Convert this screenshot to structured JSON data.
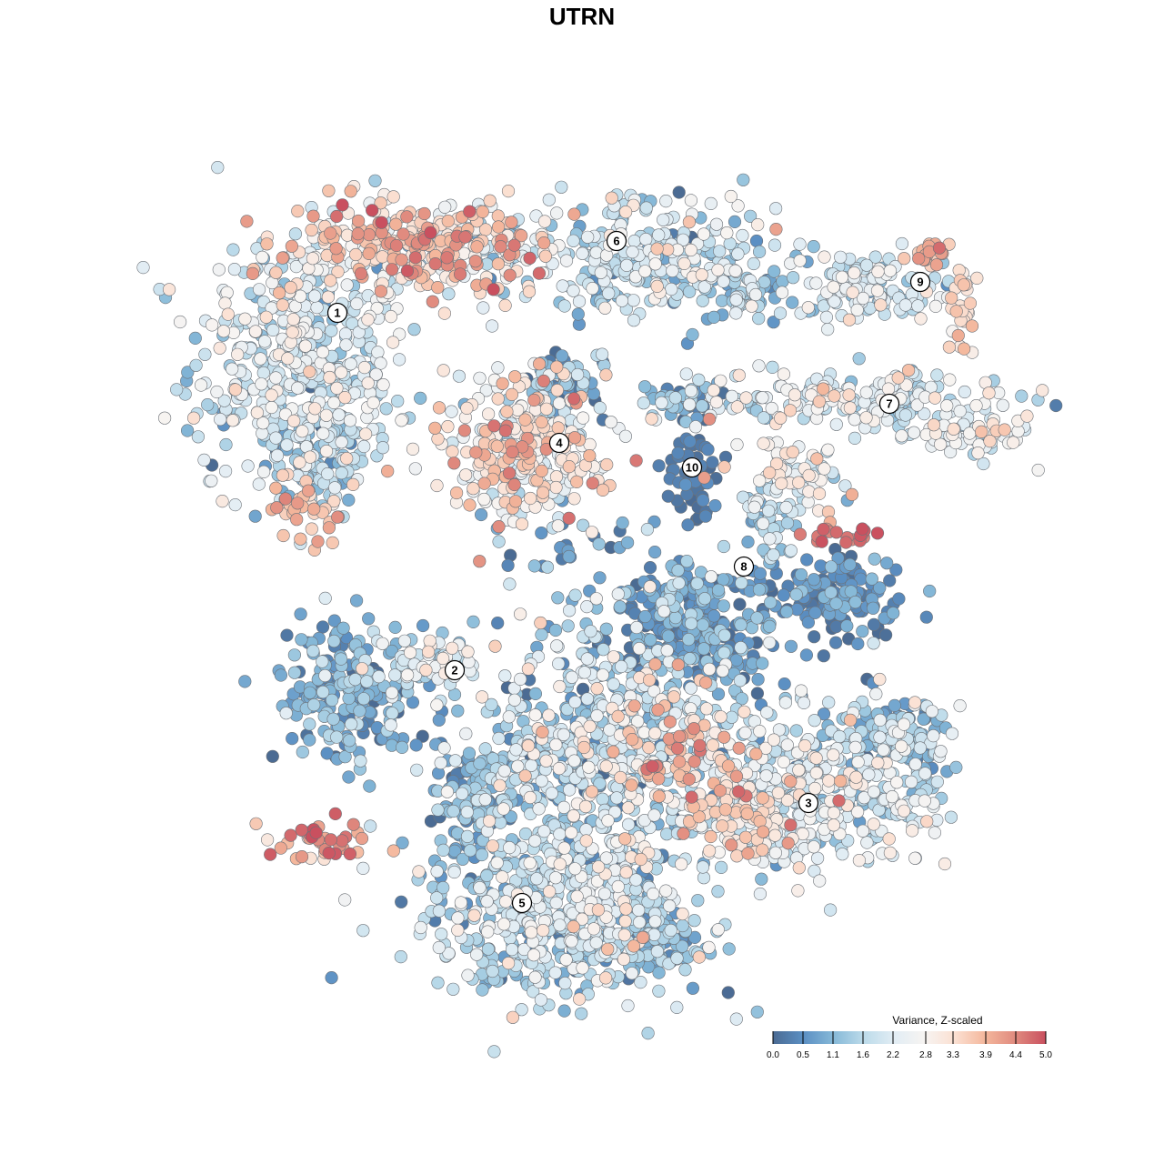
{
  "chart_data": {
    "type": "scatter",
    "title": "UTRN",
    "xlabel": "",
    "ylabel": "",
    "grid": false,
    "xlim": [
      -45,
      50
    ],
    "ylim": [
      -46,
      46
    ],
    "legend": {
      "title": "Variance, Z-scaled",
      "placement": "bottom-right",
      "ticks": [
        "0.0",
        "0.5",
        "1.1",
        "1.6",
        "2.2",
        "2.8",
        "3.3",
        "3.9",
        "4.4",
        "5.0"
      ],
      "tick_values": [
        0.0,
        0.55,
        1.1,
        1.65,
        2.2,
        2.8,
        3.3,
        3.9,
        4.45,
        5.0
      ],
      "range": [
        0,
        5
      ],
      "colors": [
        "#4b6b93",
        "#5b8fc3",
        "#86b9d8",
        "#bcdbea",
        "#e2edf4",
        "#f7f4f2",
        "#fbe0d2",
        "#f4b79c",
        "#e08a7e",
        "#c9505f"
      ]
    },
    "cluster_labels": [
      {
        "label": "1",
        "x": -26.9,
        "y": 29.6
      },
      {
        "label": "2",
        "x": -14.0,
        "y": -9.7
      },
      {
        "label": "3",
        "x": 24.9,
        "y": -24.3
      },
      {
        "label": "4",
        "x": -2.5,
        "y": 15.3
      },
      {
        "label": "5",
        "x": -6.6,
        "y": -35.3
      },
      {
        "label": "6",
        "x": 3.8,
        "y": 37.5
      },
      {
        "label": "7",
        "x": 33.8,
        "y": 19.6
      },
      {
        "label": "8",
        "x": 17.8,
        "y": 1.7
      },
      {
        "label": "9",
        "x": 37.2,
        "y": 33.0
      },
      {
        "label": "10",
        "x": 12.1,
        "y": 12.6
      }
    ],
    "point_groups": [
      {
        "x": -31,
        "y": 24,
        "sx": 10,
        "sy": 12,
        "n": 480,
        "mean": 2.1,
        "sd": 0.6
      },
      {
        "x": -17,
        "y": 37,
        "sx": 13,
        "sy": 4.5,
        "n": 300,
        "mean": 3.5,
        "sd": 0.7
      },
      {
        "x": 6,
        "y": 36,
        "sx": 13,
        "sy": 5.5,
        "n": 300,
        "mean": 1.9,
        "sd": 0.7
      },
      {
        "x": 18,
        "y": 32,
        "sx": 4,
        "sy": 3,
        "n": 60,
        "mean": 1.5,
        "sd": 0.6
      },
      {
        "x": -30.5,
        "y": 8,
        "sx": 3.5,
        "sy": 2.5,
        "n": 40,
        "mean": 3.8,
        "sd": 0.4
      },
      {
        "x": -29,
        "y": 14,
        "sx": 5,
        "sy": 4,
        "n": 80,
        "mean": 1.3,
        "sd": 0.5
      },
      {
        "x": 32,
        "y": 32.5,
        "sx": 7,
        "sy": 3,
        "n": 120,
        "mean": 2.0,
        "sd": 0.5
      },
      {
        "x": 38,
        "y": 36,
        "sx": 2.5,
        "sy": 1.5,
        "n": 25,
        "mean": 3.9,
        "sd": 0.3
      },
      {
        "x": 42,
        "y": 30,
        "sx": 1,
        "sy": 4,
        "n": 25,
        "mean": 3.4,
        "sd": 0.4
      },
      {
        "x": 31,
        "y": 20,
        "sx": 15,
        "sy": 3,
        "n": 200,
        "mean": 2.2,
        "sd": 0.6
      },
      {
        "x": 43,
        "y": 16,
        "sx": 5,
        "sy": 2,
        "n": 60,
        "mean": 2.6,
        "sd": 0.5
      },
      {
        "x": -6,
        "y": 14,
        "sx": 7.5,
        "sy": 6.5,
        "n": 300,
        "mean": 3.0,
        "sd": 0.8
      },
      {
        "x": -2,
        "y": 22,
        "sx": 4,
        "sy": 3,
        "n": 60,
        "mean": 0.8,
        "sd": 0.6
      },
      {
        "x": 12.2,
        "y": 12.5,
        "sx": 2.5,
        "sy": 3.5,
        "n": 60,
        "mean": 0.2,
        "sd": 0.2
      },
      {
        "x": 10,
        "y": 20,
        "sx": 4,
        "sy": 1.5,
        "n": 50,
        "mean": 1.2,
        "sd": 0.6
      },
      {
        "x": 24,
        "y": 12,
        "sx": 5,
        "sy": 3,
        "n": 60,
        "mean": 2.6,
        "sd": 0.6
      },
      {
        "x": 29,
        "y": 5,
        "sx": 4,
        "sy": 1,
        "n": 20,
        "mean": 4.6,
        "sd": 0.3
      },
      {
        "x": 28,
        "y": -1.5,
        "sx": 6.5,
        "sy": 3.5,
        "n": 150,
        "mean": 0.5,
        "sd": 0.4
      },
      {
        "x": 21,
        "y": 7,
        "sx": 2.5,
        "sy": 3.5,
        "n": 50,
        "mean": 1.4,
        "sd": 0.6
      },
      {
        "x": 12,
        "y": -2,
        "sx": 7,
        "sy": 3.5,
        "n": 120,
        "mean": 0.7,
        "sd": 0.5
      },
      {
        "x": -26,
        "y": -12,
        "sx": 6,
        "sy": 7,
        "n": 200,
        "mean": 0.9,
        "sd": 0.5
      },
      {
        "x": -17,
        "y": -9,
        "sx": 4.5,
        "sy": 3,
        "n": 70,
        "mean": 2.2,
        "sd": 0.6
      },
      {
        "x": -29,
        "y": -28.5,
        "sx": 4.5,
        "sy": 2,
        "n": 40,
        "mean": 4.3,
        "sd": 0.6
      },
      {
        "x": 2,
        "y": -18,
        "sx": 12,
        "sy": 12,
        "n": 600,
        "mean": 1.8,
        "sd": 0.8
      },
      {
        "x": 10,
        "y": -18,
        "sx": 5,
        "sy": 5,
        "n": 80,
        "mean": 3.7,
        "sd": 0.6
      },
      {
        "x": 12,
        "y": -8,
        "sx": 8,
        "sy": 4,
        "n": 150,
        "mean": 0.6,
        "sd": 0.5
      },
      {
        "x": 26,
        "y": -22,
        "sx": 12,
        "sy": 8,
        "n": 450,
        "mean": 2.1,
        "sd": 0.7
      },
      {
        "x": 35,
        "y": -17,
        "sx": 4,
        "sy": 4,
        "n": 100,
        "mean": 1.0,
        "sd": 0.5
      },
      {
        "x": 18,
        "y": -26,
        "sx": 5,
        "sy": 4,
        "n": 100,
        "mean": 3.1,
        "sd": 0.6
      },
      {
        "x": -2,
        "y": -36,
        "sx": 13,
        "sy": 8,
        "n": 600,
        "mean": 1.8,
        "sd": 0.7
      },
      {
        "x": 8,
        "y": -39,
        "sx": 4,
        "sy": 2.5,
        "n": 80,
        "mean": 0.8,
        "sd": 0.4
      },
      {
        "x": -12,
        "y": -24,
        "sx": 4,
        "sy": 5,
        "n": 120,
        "mean": 1.0,
        "sd": 0.5
      },
      {
        "x": 0,
        "y": 4,
        "sx": 7,
        "sy": 5,
        "n": 30,
        "mean": 0.8,
        "sd": 0.5
      }
    ]
  }
}
